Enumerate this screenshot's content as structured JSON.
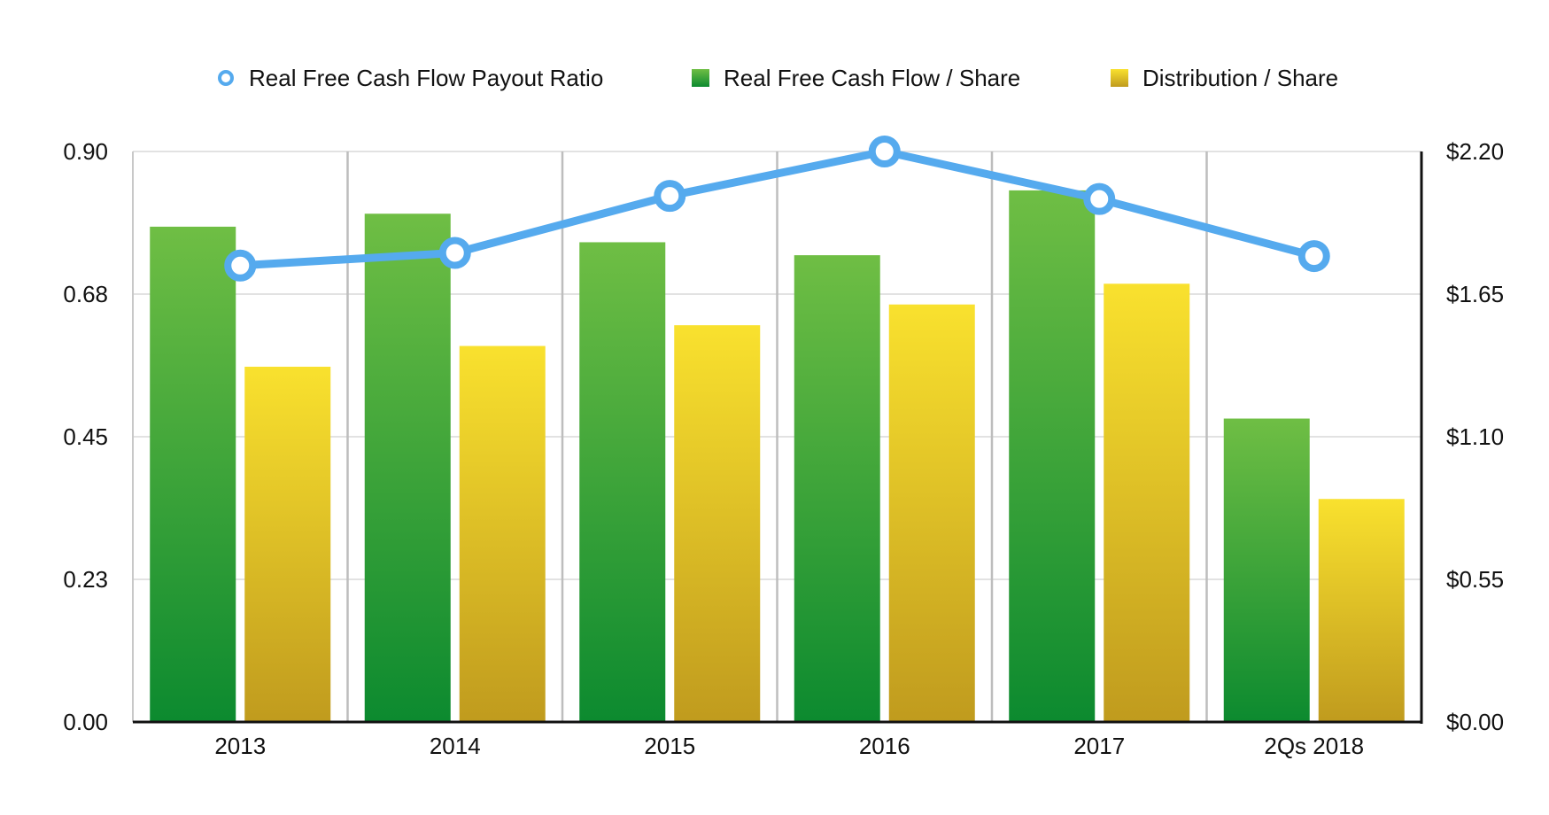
{
  "chart_data": {
    "type": "bar",
    "categories": [
      "2013",
      "2014",
      "2015",
      "2016",
      "2017",
      "2Qs 2018"
    ],
    "legend_position": "top",
    "grid": true,
    "y_left": {
      "ticks": [
        "0.00",
        "0.23",
        "0.45",
        "0.68",
        "0.90"
      ],
      "ylim": [
        0,
        0.9
      ]
    },
    "y_right": {
      "ticks": [
        "$0.00",
        "$0.55",
        "$1.10",
        "$1.65",
        "$2.20"
      ],
      "ylim": [
        0,
        2.2
      ]
    },
    "series": [
      {
        "name": "Real Free Cash Flow Payout Ratio",
        "type": "line",
        "axis": "left",
        "color": "#55aaee",
        "values": [
          0.72,
          0.74,
          0.83,
          0.9,
          0.825,
          0.735
        ]
      },
      {
        "name": "Real Free Cash Flow / Share",
        "type": "bar",
        "axis": "right",
        "color_top": "#6fbe44",
        "color_bottom": "#0c8a2f",
        "values": [
          1.91,
          1.96,
          1.85,
          1.8,
          2.05,
          1.17
        ]
      },
      {
        "name": "Distribution / Share",
        "type": "bar",
        "axis": "right",
        "color_top": "#f9e12e",
        "color_bottom": "#c09b1e",
        "values": [
          1.37,
          1.45,
          1.53,
          1.61,
          1.69,
          0.86
        ]
      }
    ]
  }
}
